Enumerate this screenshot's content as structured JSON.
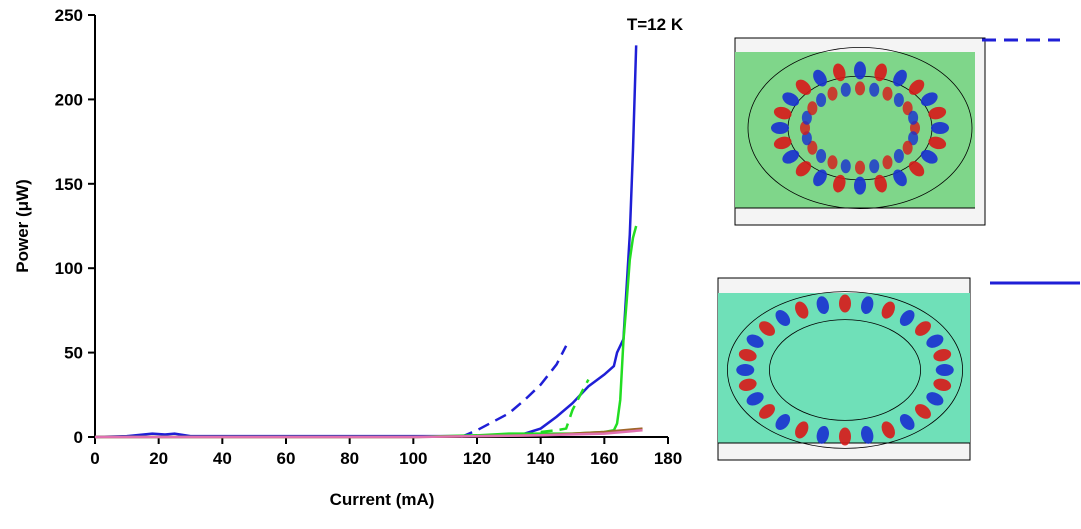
{
  "chart_data": {
    "type": "line",
    "annotation": "T=12 K",
    "xlabel": "Current (mA)",
    "ylabel": "Power (μW)",
    "xlim": [
      0,
      180
    ],
    "xticks": [
      0,
      20,
      40,
      60,
      80,
      100,
      120,
      140,
      160,
      180
    ],
    "ylim": [
      0,
      250
    ],
    "yticks": [
      0,
      50,
      100,
      150,
      200,
      250
    ],
    "series": [
      {
        "color": "#1f1fd6",
        "dashed": false,
        "x": [
          0,
          10,
          18,
          22,
          25,
          30,
          50,
          100,
          115,
          125,
          135,
          140,
          145,
          150,
          155,
          160,
          163,
          164,
          166,
          168,
          169,
          170
        ],
        "values": [
          0,
          0.5,
          2,
          1.5,
          2,
          0.5,
          0.5,
          0.5,
          0.5,
          1,
          2,
          5,
          12,
          20,
          30,
          37,
          42,
          50,
          58,
          120,
          170,
          232
        ]
      },
      {
        "color": "#1f1fd6",
        "dashed": true,
        "x": [
          115,
          120,
          125,
          130,
          135,
          140,
          145,
          148
        ],
        "values": [
          0,
          4,
          9,
          14,
          22,
          31,
          43,
          54
        ]
      },
      {
        "color": "#22dd22",
        "dashed": false,
        "x": [
          0,
          50,
          100,
          120,
          130,
          140,
          150,
          160,
          163,
          164,
          165,
          166,
          167,
          168,
          169,
          170
        ],
        "values": [
          0,
          0,
          0,
          1,
          2,
          2,
          2,
          3,
          4,
          8,
          22,
          57,
          80,
          105,
          118,
          125
        ]
      },
      {
        "color": "#22dd22",
        "dashed": true,
        "x": [
          140,
          145,
          148,
          150,
          153,
          155
        ],
        "values": [
          3,
          4,
          5,
          16,
          27,
          34
        ]
      },
      {
        "color": "#a0662a",
        "dashed": false,
        "x": [
          0,
          100,
          140,
          160,
          172
        ],
        "values": [
          0,
          0,
          1,
          3,
          5
        ]
      },
      {
        "color": "#e070b0",
        "dashed": false,
        "x": [
          0,
          100,
          140,
          160,
          172
        ],
        "values": [
          0,
          0,
          1,
          2,
          4
        ]
      }
    ]
  }
}
